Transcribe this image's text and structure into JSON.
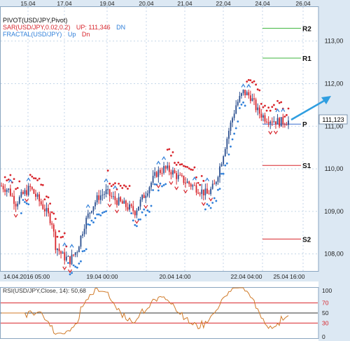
{
  "top_dates": [
    "15.04",
    "17.04",
    "19.04",
    "20.04",
    "21.04",
    "22.04",
    "24.04",
    "26.04"
  ],
  "bottom_dates": [
    "14.04.2016 05:00",
    "19.04 00:00",
    "20.04 14:00",
    "22.04 04:00",
    "25.04 16:00"
  ],
  "legend": {
    "pivot": "PIVOT(USD/JPY,Pivot)",
    "sar_name": "SAR(USD/JPY,0.02,0.2)",
    "sar_up": "UP: 111,346",
    "sar_dn": "DN",
    "fractal_name": "FRACTAL(USD/JPY)",
    "fractal_up": "Up",
    "fractal_dn": "Dn"
  },
  "price_axis": [
    "113,00",
    "112,00",
    "111,00",
    "110,00",
    "109,00",
    "108,00"
  ],
  "current_price": "111,123",
  "pivot_levels": {
    "r2": "R2",
    "r1": "R1",
    "p": "P",
    "s1": "S1",
    "s2": "S2"
  },
  "rsi": {
    "label": "RSI(USD/JPY,Close, 14): 50,68",
    "axis": [
      "100",
      "70",
      "50",
      "30",
      "0"
    ]
  },
  "colors": {
    "axis_bg": "#dce8f3",
    "grid": "#c4d6e8",
    "bull": "#2b4f8f",
    "bear": "#d8252c",
    "sar_bear": "#d8252c",
    "sar_bull": "#2f7fd9",
    "pivot_res": "#3cb43c",
    "pivot_sup": "#d8252c",
    "pivot_p": "#3a6fcf",
    "arrow": "#2f9ee0",
    "rsi_line": "#d07a28"
  },
  "chart_data": {
    "type": "candlestick",
    "symbol": "USD/JPY",
    "ylim": [
      107.6,
      113.8
    ],
    "x_tick_labels_top": [
      "15.04",
      "17.04",
      "19.04",
      "20.04",
      "21.04",
      "22.04",
      "24.04",
      "26.04"
    ],
    "x_tick_labels_bottom": [
      "14.04.2016 05:00",
      "19.04 00:00",
      "20.04 14:00",
      "22.04 04:00",
      "25.04 16:00"
    ],
    "close_path": [
      [
        0,
        109.6
      ],
      [
        4,
        109.5
      ],
      [
        8,
        109.2
      ],
      [
        12,
        109.4
      ],
      [
        16,
        109.55
      ],
      [
        20,
        109.3
      ],
      [
        24,
        109.05
      ],
      [
        28,
        108.75
      ],
      [
        30,
        108.2
      ],
      [
        34,
        107.95
      ],
      [
        38,
        107.85
      ],
      [
        42,
        108.1
      ],
      [
        46,
        108.7
      ],
      [
        50,
        109.1
      ],
      [
        54,
        109.35
      ],
      [
        58,
        109.45
      ],
      [
        62,
        109.3
      ],
      [
        66,
        109.2
      ],
      [
        70,
        109.1
      ],
      [
        74,
        109.0
      ],
      [
        78,
        109.3
      ],
      [
        82,
        109.6
      ],
      [
        86,
        109.9
      ],
      [
        90,
        110.0
      ],
      [
        94,
        109.95
      ],
      [
        98,
        109.8
      ],
      [
        102,
        109.7
      ],
      [
        106,
        109.6
      ],
      [
        110,
        109.5
      ],
      [
        114,
        109.4
      ],
      [
        118,
        109.6
      ],
      [
        122,
        110.2
      ],
      [
        126,
        110.9
      ],
      [
        130,
        111.5
      ],
      [
        134,
        111.8
      ],
      [
        138,
        111.7
      ],
      [
        142,
        111.35
      ],
      [
        146,
        111.2
      ],
      [
        150,
        111.15
      ],
      [
        154,
        111.1
      ],
      [
        158,
        111.12
      ]
    ],
    "pivots": {
      "R2": 113.3,
      "R1": 112.6,
      "P": 111.05,
      "S1": 110.08,
      "S2": 108.35
    },
    "last_price": 111.123,
    "sar_up_value": 111.346,
    "rsi_last": 50.68,
    "rsi_levels": [
      30,
      50,
      70
    ]
  }
}
